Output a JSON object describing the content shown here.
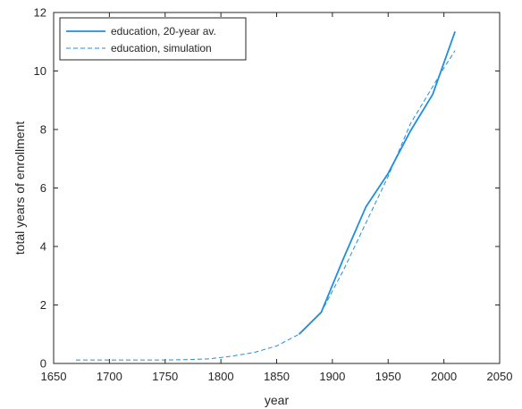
{
  "chart_data": {
    "type": "line",
    "xlabel": "year",
    "ylabel": "total years of enrollment",
    "xlim": [
      1650,
      2050
    ],
    "ylim": [
      0,
      12
    ],
    "xticks": [
      1650,
      1700,
      1750,
      1800,
      1850,
      1900,
      1950,
      2000,
      2050
    ],
    "yticks": [
      0,
      2,
      4,
      6,
      8,
      10,
      12
    ],
    "grid": false,
    "legend_position": "top-left",
    "series": [
      {
        "name": "education, 20-year av.",
        "style": "solid",
        "color": "#1f8ee0",
        "x": [
          1870,
          1890,
          1910,
          1930,
          1950,
          1970,
          1990,
          2010
        ],
        "y": [
          1.0,
          1.75,
          3.6,
          5.35,
          6.5,
          7.95,
          9.2,
          11.35
        ]
      },
      {
        "name": "education, simulation",
        "style": "dashed",
        "color": "#1f8ee0",
        "x": [
          1670,
          1690,
          1710,
          1730,
          1750,
          1770,
          1790,
          1810,
          1830,
          1850,
          1870,
          1890,
          1910,
          1930,
          1950,
          1970,
          2000,
          2010
        ],
        "y": [
          0.12,
          0.12,
          0.12,
          0.12,
          0.12,
          0.13,
          0.16,
          0.25,
          0.38,
          0.6,
          1.0,
          1.75,
          3.2,
          4.8,
          6.4,
          8.2,
          10.1,
          10.7
        ]
      }
    ]
  }
}
